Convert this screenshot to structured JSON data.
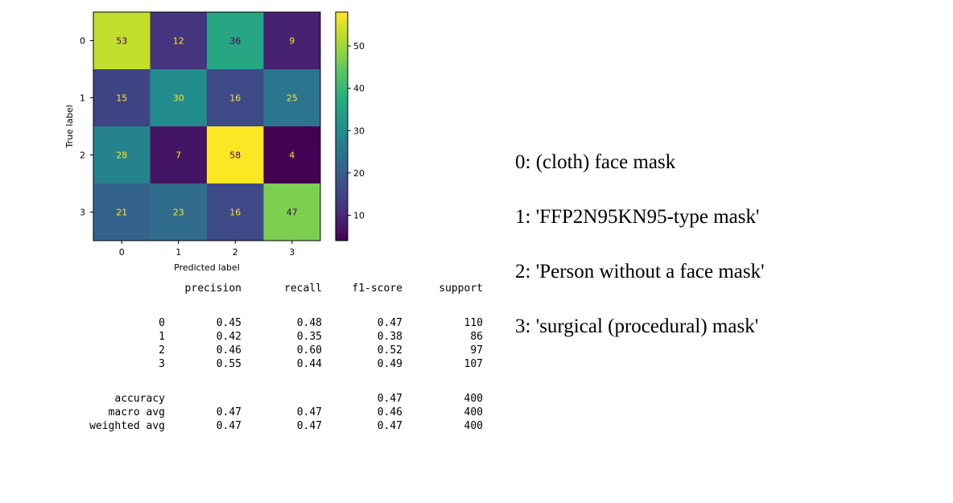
{
  "chart_data": {
    "type": "heatmap",
    "title": "",
    "xlabel": "Predicted label",
    "ylabel": "True label",
    "x_categories": [
      "0",
      "1",
      "2",
      "3"
    ],
    "y_categories": [
      "0",
      "1",
      "2",
      "3"
    ],
    "matrix": [
      [
        53,
        12,
        36,
        9
      ],
      [
        15,
        30,
        16,
        25
      ],
      [
        28,
        7,
        58,
        4
      ],
      [
        21,
        23,
        16,
        47
      ]
    ],
    "colormap": "viridis",
    "colorbar": {
      "ticks": [
        10,
        20,
        30,
        40,
        50
      ],
      "range": [
        4,
        58
      ]
    }
  },
  "report": {
    "header": [
      "precision",
      "recall",
      "f1-score",
      "support"
    ],
    "rows": [
      [
        "0",
        "0.45",
        "0.48",
        "0.47",
        "110"
      ],
      [
        "1",
        "0.42",
        "0.35",
        "0.38",
        "86"
      ],
      [
        "2",
        "0.46",
        "0.60",
        "0.52",
        "97"
      ],
      [
        "3",
        "0.55",
        "0.44",
        "0.49",
        "107"
      ]
    ],
    "summary": [
      [
        "accuracy",
        "",
        "",
        "0.47",
        "400"
      ],
      [
        "macro avg",
        "0.47",
        "0.47",
        "0.46",
        "400"
      ],
      [
        "weighted avg",
        "0.47",
        "0.47",
        "0.47",
        "400"
      ]
    ]
  },
  "legend": {
    "items": [
      "0: (cloth) face mask",
      "1: 'FFP2N95KN95-type mask'",
      "2: 'Person without a face mask'",
      "3: 'surgical (procedural) mask'"
    ]
  }
}
